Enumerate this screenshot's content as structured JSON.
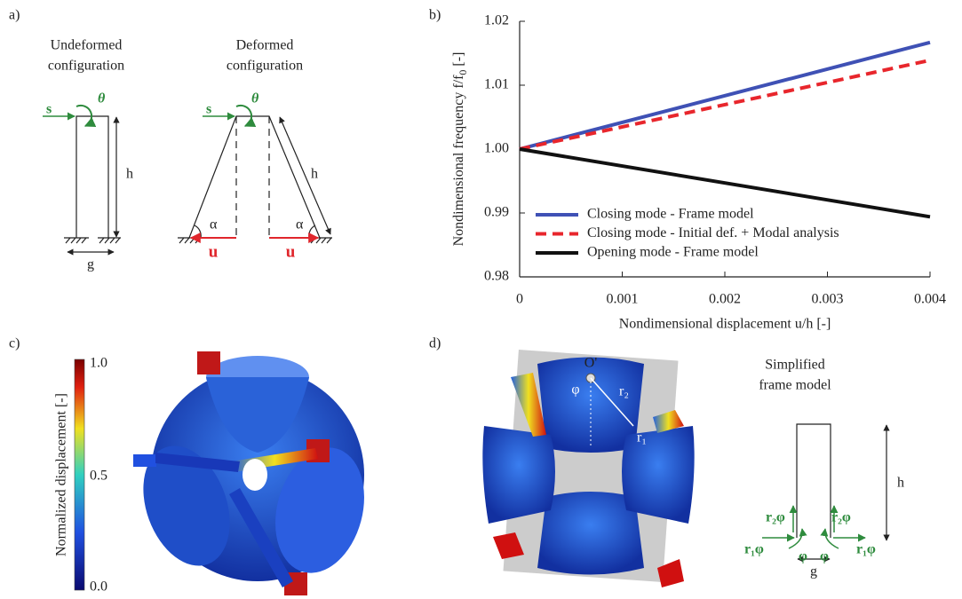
{
  "chart_data": {
    "type": "line",
    "panel_label": "b)",
    "xlabel": "Nondimensional displacement u/h [-]",
    "ylabel": [
      "Nondimensional frequency f/f",
      "0",
      "  [-]"
    ],
    "x": [
      0,
      0.004
    ],
    "series": [
      {
        "name": "Closing mode - Frame model",
        "color": "#3f51b5",
        "line_style": "solid",
        "values": [
          1.0,
          1.0167
        ]
      },
      {
        "name": "Closing mode - Initial def. + Modal analysis",
        "color": "#e8262c",
        "line_style": "dashed",
        "values": [
          1.0,
          1.0139
        ]
      },
      {
        "name": "Opening mode - Frame model",
        "color": "#111111",
        "line_style": "solid",
        "values": [
          1.0,
          0.9894
        ]
      }
    ],
    "xlim": [
      0,
      0.004
    ],
    "xticks": [
      0,
      0.001,
      0.002,
      0.003,
      0.004
    ],
    "ylim": [
      0.98,
      1.02
    ],
    "yticks": [
      0.98,
      0.99,
      {
        "value": 1,
        "label": "1.00"
      },
      1.01,
      1.02
    ],
    "grid": false,
    "legend": "lower left"
  },
  "panel_a": {
    "label": "a)",
    "undeformed": [
      "Undeformed",
      "configuration"
    ],
    "deformed": [
      "Deformed",
      "configuration"
    ],
    "s": "s",
    "theta": "θ",
    "h": "h",
    "g": "g",
    "alpha": "α",
    "u": "u"
  },
  "panel_c": {
    "label": "c)",
    "colorbar_label": "Normalized displacement [-]",
    "colorbar_ticks": [
      "1.0",
      "0.5",
      "0.0"
    ]
  },
  "panel_d": {
    "label": "d)",
    "origin": "O'",
    "phi": "φ",
    "r2": "r₂",
    "r1": "r₁",
    "title": [
      "Simplified",
      "frame model"
    ],
    "h": "h",
    "g": "g",
    "r2phi": "r₂φ",
    "r1phi": "r₁φ"
  }
}
